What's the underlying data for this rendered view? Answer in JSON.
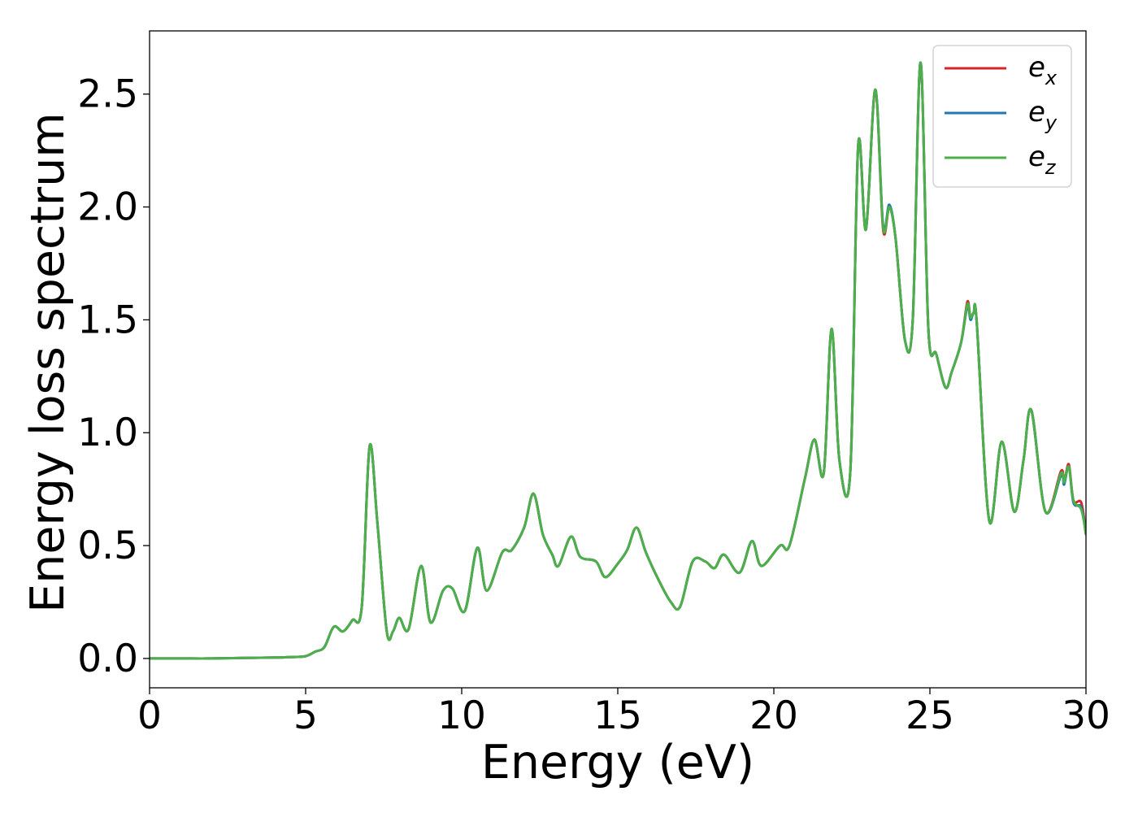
{
  "chart_data": {
    "type": "line",
    "title": "",
    "xlabel": "Energy (eV)",
    "ylabel": "Energy loss spectrum",
    "xlim": [
      0,
      30
    ],
    "ylim": [
      -0.13,
      2.78
    ],
    "xticks": [
      0,
      5,
      10,
      15,
      20,
      25,
      30
    ],
    "xtick_labels": [
      "0",
      "5",
      "10",
      "15",
      "20",
      "25",
      "30"
    ],
    "yticks": [
      0.0,
      0.5,
      1.0,
      1.5,
      2.0,
      2.5
    ],
    "ytick_labels": [
      "0.0",
      "0.5",
      "1.0",
      "1.5",
      "2.0",
      "2.5"
    ],
    "grid": false,
    "legend_position": "top-right",
    "x": [
      0,
      1,
      2,
      3,
      4,
      4.5,
      5,
      5.3,
      5.6,
      5.9,
      6.2,
      6.5,
      6.8,
      7.05,
      7.3,
      7.6,
      7.8,
      8.0,
      8.3,
      8.7,
      9.0,
      9.4,
      9.7,
      10.1,
      10.5,
      10.8,
      11.3,
      11.6,
      12.0,
      12.3,
      12.6,
      12.9,
      13.1,
      13.5,
      13.8,
      14.3,
      14.6,
      15.0,
      15.3,
      15.6,
      15.9,
      16.3,
      16.7,
      17.0,
      17.4,
      17.8,
      18.1,
      18.4,
      18.9,
      19.3,
      19.6,
      20.2,
      20.5,
      21.0,
      21.3,
      21.6,
      21.85,
      22.1,
      22.45,
      22.7,
      22.95,
      23.25,
      23.5,
      23.7,
      23.9,
      24.2,
      24.45,
      24.7,
      24.95,
      25.2,
      25.5,
      25.7,
      26.0,
      26.2,
      26.3,
      26.4,
      26.5,
      26.9,
      27.3,
      27.7,
      28.0,
      28.25,
      28.7,
      29.2,
      29.3,
      29.45,
      29.6,
      29.85,
      30.0
    ],
    "series": [
      {
        "name": "e_x",
        "color": "#d62728",
        "values": [
          0,
          0,
          0,
          0.002,
          0.004,
          0.006,
          0.01,
          0.03,
          0.05,
          0.14,
          0.12,
          0.17,
          0.23,
          0.94,
          0.6,
          0.12,
          0.12,
          0.18,
          0.13,
          0.41,
          0.16,
          0.3,
          0.31,
          0.21,
          0.49,
          0.3,
          0.47,
          0.48,
          0.58,
          0.73,
          0.55,
          0.46,
          0.41,
          0.54,
          0.45,
          0.43,
          0.36,
          0.42,
          0.48,
          0.58,
          0.47,
          0.35,
          0.25,
          0.23,
          0.43,
          0.43,
          0.4,
          0.46,
          0.38,
          0.52,
          0.41,
          0.5,
          0.5,
          0.8,
          0.97,
          0.82,
          1.46,
          0.88,
          0.83,
          2.27,
          1.9,
          2.52,
          1.9,
          2.0,
          1.86,
          1.41,
          1.5,
          2.64,
          1.46,
          1.35,
          1.2,
          1.27,
          1.4,
          1.58,
          1.51,
          1.53,
          1.49,
          0.61,
          0.96,
          0.65,
          0.88,
          1.1,
          0.65,
          0.83,
          0.78,
          0.86,
          0.7,
          0.69,
          0.55
        ]
      },
      {
        "name": "e_y",
        "color": "#1f77b4",
        "values": [
          0,
          0,
          0,
          0.002,
          0.004,
          0.006,
          0.01,
          0.03,
          0.05,
          0.14,
          0.12,
          0.17,
          0.23,
          0.94,
          0.6,
          0.12,
          0.12,
          0.18,
          0.13,
          0.41,
          0.16,
          0.3,
          0.31,
          0.21,
          0.49,
          0.3,
          0.47,
          0.48,
          0.58,
          0.73,
          0.55,
          0.46,
          0.41,
          0.54,
          0.45,
          0.43,
          0.36,
          0.42,
          0.48,
          0.58,
          0.47,
          0.35,
          0.25,
          0.23,
          0.43,
          0.43,
          0.4,
          0.46,
          0.38,
          0.52,
          0.41,
          0.5,
          0.5,
          0.8,
          0.97,
          0.82,
          1.46,
          0.88,
          0.83,
          2.27,
          1.9,
          2.52,
          1.92,
          2.01,
          1.86,
          1.41,
          1.5,
          2.64,
          1.46,
          1.35,
          1.2,
          1.27,
          1.4,
          1.56,
          1.5,
          1.53,
          1.49,
          0.61,
          0.96,
          0.65,
          0.88,
          1.1,
          0.65,
          0.81,
          0.77,
          0.85,
          0.69,
          0.67,
          0.55
        ]
      },
      {
        "name": "e_z",
        "color": "#4daf4a",
        "values": [
          0,
          0,
          0,
          0.002,
          0.004,
          0.006,
          0.01,
          0.03,
          0.05,
          0.14,
          0.12,
          0.17,
          0.23,
          0.94,
          0.6,
          0.12,
          0.12,
          0.18,
          0.13,
          0.41,
          0.16,
          0.3,
          0.31,
          0.21,
          0.49,
          0.3,
          0.47,
          0.48,
          0.58,
          0.73,
          0.55,
          0.46,
          0.41,
          0.54,
          0.45,
          0.43,
          0.36,
          0.42,
          0.48,
          0.58,
          0.47,
          0.35,
          0.25,
          0.23,
          0.43,
          0.43,
          0.4,
          0.46,
          0.38,
          0.52,
          0.41,
          0.5,
          0.5,
          0.8,
          0.97,
          0.82,
          1.46,
          0.88,
          0.83,
          2.27,
          1.9,
          2.52,
          1.91,
          2.0,
          1.86,
          1.41,
          1.5,
          2.64,
          1.46,
          1.35,
          1.2,
          1.27,
          1.4,
          1.57,
          1.51,
          1.53,
          1.49,
          0.61,
          0.96,
          0.65,
          0.88,
          1.1,
          0.65,
          0.82,
          0.78,
          0.85,
          0.7,
          0.66,
          0.55
        ]
      }
    ],
    "legend": [
      {
        "base": "e",
        "sub": "x",
        "color": "#d62728"
      },
      {
        "base": "e",
        "sub": "y",
        "color": "#1f77b4"
      },
      {
        "base": "e",
        "sub": "z",
        "color": "#4daf4a"
      }
    ]
  }
}
